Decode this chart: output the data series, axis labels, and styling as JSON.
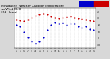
{
  "title": "Milwaukee Weather Outdoor Temperature\nvs Wind Chill\n(24 Hours)",
  "title_fontsize": 3.2,
  "title_color": "#000000",
  "background_color": "#d8d8d8",
  "plot_bg_color": "#ffffff",
  "legend_blue_color": "#0000cc",
  "legend_red_color": "#cc0000",
  "grid_color": "#888888",
  "x_labels": [
    "1",
    "3",
    "5",
    "7",
    "9",
    "11",
    "1",
    "3",
    "5",
    "7",
    "9",
    "11",
    "1",
    "3",
    "5",
    "7",
    "9",
    "11",
    "1",
    "3",
    "5"
  ],
  "ylim": [
    -15,
    45
  ],
  "yticks": [
    -10,
    0,
    10,
    20,
    30,
    40
  ],
  "red_x": [
    0,
    1,
    2,
    3,
    4,
    5,
    6,
    7,
    8,
    9,
    10,
    11,
    12,
    13,
    14,
    15,
    16,
    17,
    18,
    19,
    20
  ],
  "red_y": [
    28,
    27,
    26,
    28,
    31,
    34,
    36,
    37,
    36,
    33,
    31,
    30,
    31,
    32,
    33,
    31,
    30,
    29,
    28,
    27,
    26
  ],
  "blue_x": [
    0,
    1,
    2,
    3,
    4,
    5,
    6,
    7,
    8,
    9,
    10,
    11,
    12,
    13,
    14,
    15,
    16,
    17,
    18,
    19,
    20
  ],
  "blue_y": [
    20,
    18,
    10,
    2,
    -5,
    -8,
    -5,
    2,
    13,
    20,
    24,
    22,
    23,
    20,
    22,
    22,
    18,
    16,
    18,
    14,
    13
  ],
  "dot_size": 2.5,
  "tick_fontsize": 2.2,
  "n_vgrid": 21
}
